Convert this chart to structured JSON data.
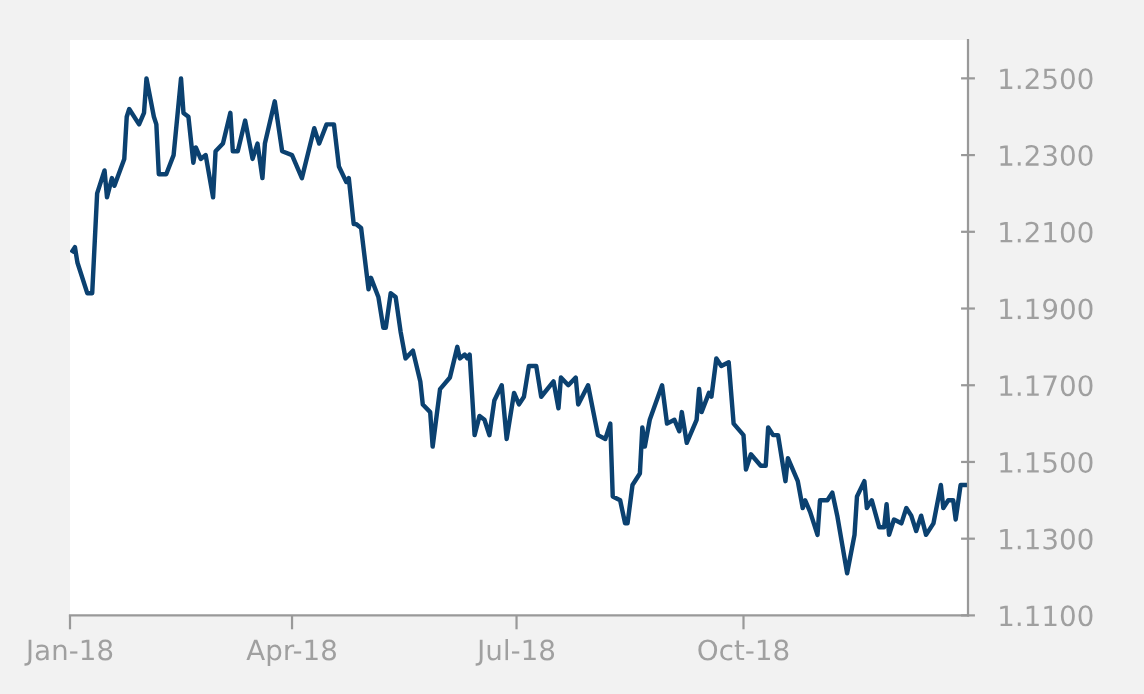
{
  "chart_data": {
    "type": "line",
    "x": [
      "2018-01-02",
      "2018-01-03",
      "2018-01-04",
      "2018-01-08",
      "2018-01-10",
      "2018-01-12",
      "2018-01-15",
      "2018-01-16",
      "2018-01-18",
      "2018-01-19",
      "2018-01-23",
      "2018-01-24",
      "2018-01-25",
      "2018-01-29",
      "2018-01-31",
      "2018-02-01",
      "2018-02-04",
      "2018-02-05",
      "2018-02-06",
      "2018-02-09",
      "2018-02-12",
      "2018-02-15",
      "2018-02-16",
      "2018-02-18",
      "2018-02-20",
      "2018-02-21",
      "2018-02-23",
      "2018-02-25",
      "2018-02-28",
      "2018-03-01",
      "2018-03-04",
      "2018-03-07",
      "2018-03-08",
      "2018-03-10",
      "2018-03-13",
      "2018-03-16",
      "2018-03-18",
      "2018-03-20",
      "2018-03-21",
      "2018-03-25",
      "2018-03-28",
      "2018-04-01",
      "2018-04-05",
      "2018-04-10",
      "2018-04-12",
      "2018-04-15",
      "2018-04-18",
      "2018-04-20",
      "2018-04-23",
      "2018-04-24",
      "2018-04-26",
      "2018-04-27",
      "2018-04-29",
      "2018-05-02",
      "2018-05-03",
      "2018-05-06",
      "2018-05-08",
      "2018-05-09",
      "2018-05-11",
      "2018-05-13",
      "2018-05-15",
      "2018-05-17",
      "2018-05-20",
      "2018-05-23",
      "2018-05-24",
      "2018-05-27",
      "2018-05-28",
      "2018-05-31",
      "2018-06-04",
      "2018-06-07",
      "2018-06-08",
      "2018-06-10",
      "2018-06-11",
      "2018-06-12",
      "2018-06-14",
      "2018-06-16",
      "2018-06-18",
      "2018-06-20",
      "2018-06-22",
      "2018-06-25",
      "2018-06-27",
      "2018-06-30",
      "2018-07-02",
      "2018-07-04",
      "2018-07-06",
      "2018-07-09",
      "2018-07-11",
      "2018-07-16",
      "2018-07-18",
      "2018-07-19",
      "2018-07-22",
      "2018-07-25",
      "2018-07-26",
      "2018-07-30",
      "2018-08-03",
      "2018-08-06",
      "2018-08-08",
      "2018-08-09",
      "2018-08-12",
      "2018-08-14",
      "2018-08-15",
      "2018-08-17",
      "2018-08-20",
      "2018-08-21",
      "2018-08-22",
      "2018-08-24",
      "2018-08-29",
      "2018-08-31",
      "2018-09-03",
      "2018-09-05",
      "2018-09-06",
      "2018-09-08",
      "2018-09-12",
      "2018-09-13",
      "2018-09-14",
      "2018-09-17",
      "2018-09-18",
      "2018-09-20",
      "2018-09-22",
      "2018-09-25",
      "2018-09-27",
      "2018-10-01",
      "2018-10-02",
      "2018-10-04",
      "2018-10-08",
      "2018-10-10",
      "2018-10-11",
      "2018-10-13",
      "2018-10-15",
      "2018-10-18",
      "2018-10-19",
      "2018-10-23",
      "2018-10-25",
      "2018-10-26",
      "2018-10-28",
      "2018-10-31",
      "2018-11-01",
      "2018-11-04",
      "2018-11-06",
      "2018-11-08",
      "2018-11-12",
      "2018-11-15",
      "2018-11-16",
      "2018-11-19",
      "2018-11-20",
      "2018-11-22",
      "2018-11-25",
      "2018-11-27",
      "2018-11-28",
      "2018-11-29",
      "2018-12-01",
      "2018-12-04",
      "2018-12-06",
      "2018-12-08",
      "2018-12-10",
      "2018-12-12",
      "2018-12-14",
      "2018-12-17",
      "2018-12-20",
      "2018-12-21",
      "2018-12-23",
      "2018-12-25",
      "2018-12-26",
      "2018-12-28",
      "2018-12-31"
    ],
    "series": [
      {
        "color": "#0b4170",
        "values": [
          1.205,
          1.206,
          1.202,
          1.194,
          1.194,
          1.22,
          1.226,
          1.219,
          1.224,
          1.222,
          1.229,
          1.24,
          1.242,
          1.238,
          1.241,
          1.25,
          1.24,
          1.238,
          1.225,
          1.225,
          1.23,
          1.25,
          1.241,
          1.24,
          1.228,
          1.232,
          1.229,
          1.23,
          1.219,
          1.231,
          1.233,
          1.241,
          1.231,
          1.231,
          1.239,
          1.229,
          1.233,
          1.224,
          1.233,
          1.244,
          1.231,
          1.23,
          1.224,
          1.237,
          1.233,
          1.238,
          1.238,
          1.227,
          1.223,
          1.224,
          1.212,
          1.212,
          1.211,
          1.195,
          1.198,
          1.193,
          1.185,
          1.185,
          1.194,
          1.193,
          1.184,
          1.177,
          1.179,
          1.171,
          1.165,
          1.163,
          1.154,
          1.169,
          1.172,
          1.18,
          1.177,
          1.178,
          1.177,
          1.178,
          1.157,
          1.162,
          1.161,
          1.157,
          1.166,
          1.17,
          1.156,
          1.168,
          1.165,
          1.167,
          1.175,
          1.175,
          1.167,
          1.171,
          1.164,
          1.172,
          1.17,
          1.172,
          1.165,
          1.17,
          1.157,
          1.156,
          1.16,
          1.141,
          1.14,
          1.134,
          1.134,
          1.144,
          1.147,
          1.159,
          1.154,
          1.161,
          1.17,
          1.16,
          1.161,
          1.158,
          1.163,
          1.155,
          1.161,
          1.169,
          1.163,
          1.168,
          1.167,
          1.177,
          1.175,
          1.176,
          1.16,
          1.157,
          1.148,
          1.152,
          1.149,
          1.149,
          1.159,
          1.157,
          1.157,
          1.145,
          1.151,
          1.145,
          1.138,
          1.14,
          1.137,
          1.131,
          1.14,
          1.14,
          1.142,
          1.136,
          1.121,
          1.131,
          1.141,
          1.145,
          1.138,
          1.14,
          1.133,
          1.133,
          1.139,
          1.131,
          1.135,
          1.134,
          1.138,
          1.136,
          1.132,
          1.136,
          1.131,
          1.134,
          1.144,
          1.138,
          1.14,
          1.14,
          1.135,
          1.144,
          1.144
        ]
      }
    ],
    "xlim": [
      "2018-01-01",
      "2018-12-31"
    ],
    "xticks": [
      {
        "value": "2018-01-01",
        "label": "Jan-18"
      },
      {
        "value": "2018-04-01",
        "label": "Apr-18"
      },
      {
        "value": "2018-07-01",
        "label": "Jul-18"
      },
      {
        "value": "2018-10-01",
        "label": "Oct-18"
      }
    ],
    "ylim": [
      1.11,
      1.26
    ],
    "yticks": [
      {
        "value": 1.11,
        "label": "1.1100"
      },
      {
        "value": 1.13,
        "label": "1.1300"
      },
      {
        "value": 1.15,
        "label": "1.1500"
      },
      {
        "value": 1.17,
        "label": "1.1700"
      },
      {
        "value": 1.19,
        "label": "1.1900"
      },
      {
        "value": 1.21,
        "label": "1.2100"
      },
      {
        "value": 1.23,
        "label": "1.2300"
      },
      {
        "value": 1.25,
        "label": "1.2500"
      }
    ],
    "grid": false,
    "marker": "none",
    "line_style": "solid"
  }
}
